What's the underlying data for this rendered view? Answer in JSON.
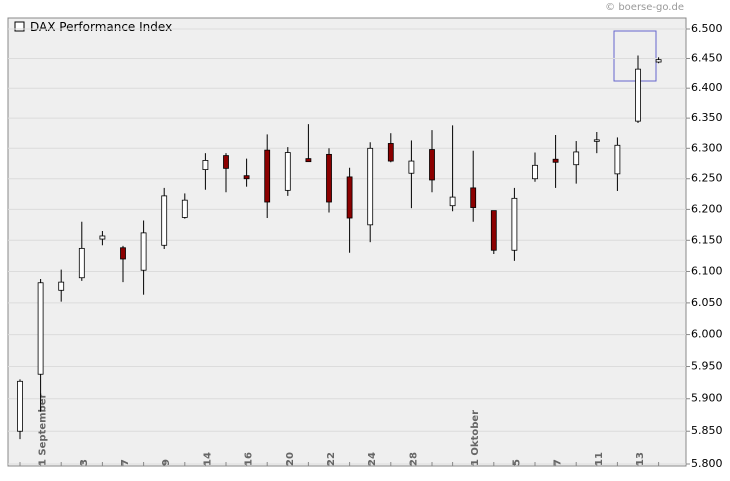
{
  "chart_data": {
    "type": "candlestick",
    "title": "DAX Performance Index",
    "source": "© boerse-go.de",
    "log_scale": true,
    "grid": true,
    "up_color": "#ffffff",
    "down_color": "#8b0000",
    "categories": [
      null,
      "1 September",
      null,
      "3",
      null,
      "7",
      null,
      "9",
      null,
      "14",
      null,
      "16",
      null,
      "20",
      null,
      "22",
      null,
      "24",
      null,
      "28",
      null,
      null,
      "1 Oktober",
      null,
      "5",
      null,
      "7",
      null,
      "11",
      null,
      "13",
      null
    ],
    "series": [
      {
        "name": "DAX Performance Index",
        "open": [
          5850,
          5938,
          6070,
          6090,
          6152,
          6138,
          6102,
          6142,
          6187,
          6265,
          6288,
          6255,
          6297,
          6231,
          6283,
          6290,
          6253,
          6175,
          6308,
          6259,
          6298,
          6206,
          6235,
          6198,
          6134,
          6250,
          6282,
          6273,
          6312,
          6258,
          6345,
          6444
        ],
        "high": [
          5930,
          6088,
          6103,
          6180,
          6165,
          6141,
          6182,
          6235,
          6226,
          6292,
          6292,
          6283,
          6323,
          6302,
          6340,
          6300,
          6268,
          6310,
          6325,
          6313,
          6330,
          6338,
          6296,
          6198,
          6235,
          6293,
          6322,
          6312,
          6327,
          6318,
          6455,
          6452
        ],
        "low": [
          5838,
          5880,
          6052,
          6085,
          6142,
          6083,
          6063,
          6136,
          6185,
          6232,
          6228,
          6237,
          6186,
          6222,
          6278,
          6195,
          6130,
          6147,
          6277,
          6202,
          6228,
          6197,
          6180,
          6128,
          6117,
          6245,
          6235,
          6242,
          6292,
          6230,
          6342,
          6442
        ],
        "close": [
          5927,
          6082,
          6083,
          6137,
          6157,
          6120,
          6162,
          6222,
          6215,
          6280,
          6267,
          6250,
          6212,
          6293,
          6278,
          6212,
          6186,
          6300,
          6279,
          6279,
          6248,
          6220,
          6203,
          6134,
          6218,
          6272,
          6277,
          6294,
          6314,
          6305,
          6432,
          6448
        ]
      }
    ],
    "ylim": [
      5800,
      6500
    ],
    "yticks": [
      {
        "value": 5800,
        "label": "5.800"
      },
      {
        "value": 5850,
        "label": "5.850"
      },
      {
        "value": 5900,
        "label": "5.900"
      },
      {
        "value": 5950,
        "label": "5.950"
      },
      {
        "value": 6000,
        "label": "6.000"
      },
      {
        "value": 6050,
        "label": "6.050"
      },
      {
        "value": 6100,
        "label": "6.100"
      },
      {
        "value": 6150,
        "label": "6.150"
      },
      {
        "value": 6200,
        "label": "6.200"
      },
      {
        "value": 6250,
        "label": "6.250"
      },
      {
        "value": 6300,
        "label": "6.300"
      },
      {
        "value": 6350,
        "label": "6.350"
      },
      {
        "value": 6400,
        "label": "6.400"
      },
      {
        "value": 6450,
        "label": "6.450"
      },
      {
        "value": 6500,
        "label": "6.500"
      }
    ]
  }
}
